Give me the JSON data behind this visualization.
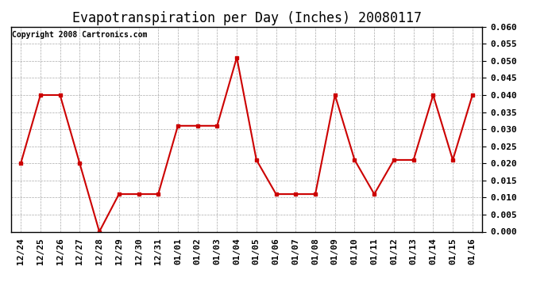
{
  "title": "Evapotranspiration per Day (Inches) 20080117",
  "copyright_text": "Copyright 2008 Cartronics.com",
  "x_labels": [
    "12/24",
    "12/25",
    "12/26",
    "12/27",
    "12/28",
    "12/29",
    "12/30",
    "12/31",
    "01/01",
    "01/02",
    "01/03",
    "01/04",
    "01/05",
    "01/06",
    "01/07",
    "01/08",
    "01/09",
    "01/10",
    "01/11",
    "01/12",
    "01/13",
    "01/14",
    "01/15",
    "01/16"
  ],
  "y_values": [
    0.02,
    0.04,
    0.04,
    0.02,
    0.0,
    0.011,
    0.011,
    0.011,
    0.031,
    0.031,
    0.031,
    0.051,
    0.021,
    0.011,
    0.011,
    0.011,
    0.04,
    0.021,
    0.011,
    0.021,
    0.021,
    0.04,
    0.021,
    0.04
  ],
  "line_color": "#cc0000",
  "marker": "s",
  "marker_size": 3,
  "marker_color": "#cc0000",
  "ylim": [
    0.0,
    0.06
  ],
  "yticks": [
    0.0,
    0.005,
    0.01,
    0.015,
    0.02,
    0.025,
    0.03,
    0.035,
    0.04,
    0.045,
    0.05,
    0.055,
    0.06
  ],
  "background_color": "#ffffff",
  "grid_color": "#aaaaaa",
  "title_fontsize": 12,
  "copyright_fontsize": 7,
  "tick_fontsize": 8,
  "ylabel_fontsize": 8
}
